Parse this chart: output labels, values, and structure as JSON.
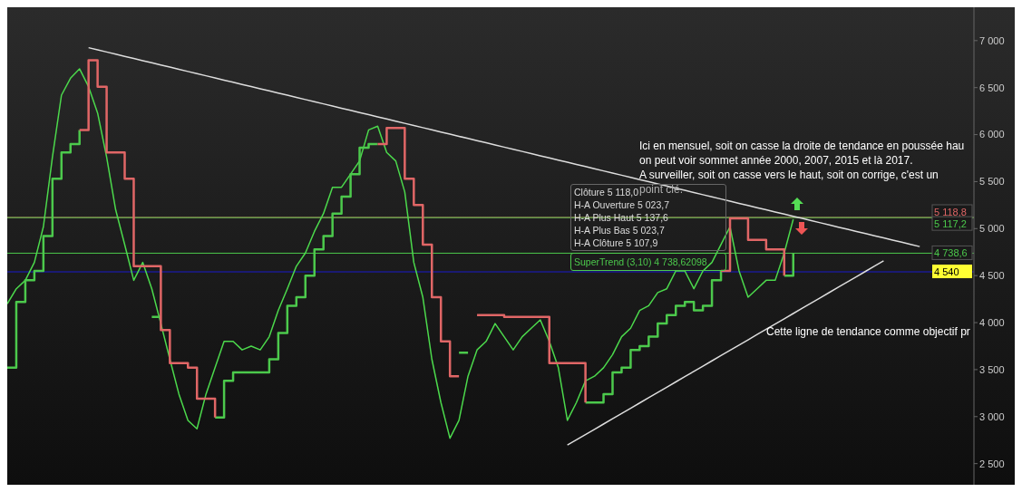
{
  "chart_data": {
    "type": "line",
    "categories": [
      null,
      null,
      null,
      null,
      null,
      null,
      null,
      null,
      null,
      null,
      null,
      null,
      null,
      null,
      null,
      null,
      null,
      null,
      null,
      null,
      null,
      null,
      null,
      null,
      null,
      null,
      null,
      null,
      null,
      null,
      null,
      null,
      null,
      null,
      null,
      null,
      null,
      null,
      null,
      null,
      null,
      null,
      null,
      null,
      null,
      null,
      null,
      null,
      null,
      null,
      null,
      null,
      null,
      null,
      null,
      null,
      null,
      null,
      null,
      null,
      null,
      null,
      null,
      null,
      null,
      null,
      null,
      null,
      null,
      null,
      null,
      null,
      null,
      null,
      null,
      null,
      null,
      null,
      null,
      null,
      null,
      null,
      null,
      null,
      null,
      null,
      null,
      null,
      null,
      null,
      null,
      null,
      null,
      null,
      null,
      null,
      null,
      null,
      null,
      null,
      null,
      null,
      null,
      null,
      null,
      null,
      null,
      null
    ],
    "series": [
      {
        "color": "#4cd94c",
        "values": [
          4200,
          4360,
          4450,
          4640,
          5020,
          5760,
          6420,
          6600,
          6700,
          6510,
          6230,
          5760,
          5200,
          4830,
          4450,
          4640,
          4360,
          3990,
          3610,
          3240,
          2960,
          2870,
          3240,
          3520,
          3800,
          3800,
          3710,
          3750,
          3710,
          3850,
          4130,
          4360,
          4600,
          4740,
          4970,
          5160,
          5440,
          5440,
          5580,
          5720,
          6050,
          6090,
          5810,
          5720,
          5390,
          4640,
          4270,
          3610,
          3150,
          2770,
          2960,
          3430,
          3710,
          3800,
          3990,
          3850,
          3710,
          3850,
          3940,
          4030,
          3800,
          3520,
          2960,
          3150,
          3380,
          3430,
          3520,
          3660,
          3850,
          3940,
          4130,
          4180,
          4320,
          4360,
          4550,
          4550,
          4360,
          4550,
          4640,
          4830,
          5020,
          4550,
          4270,
          4360,
          4450,
          4450,
          4740,
          5100,
          null,
          null,
          null,
          null,
          null,
          null,
          null,
          null,
          null,
          null,
          null,
          null,
          null,
          null,
          null,
          null,
          null,
          null,
          null,
          null
        ]
      },
      {
        "type": "step",
        "color": "#4cc94c",
        "values": [
          3520,
          4220,
          4450,
          4550,
          4920,
          5530,
          5810,
          5900,
          6050,
          null,
          null,
          null,
          null,
          null,
          null,
          null,
          4060,
          4060,
          null,
          null,
          null,
          null,
          null,
          2990,
          3380,
          3470,
          3470,
          3470,
          3470,
          3610,
          3890,
          4180,
          4270,
          4500,
          4780,
          4920,
          5160,
          5340,
          5580,
          5860,
          5900,
          5900,
          null,
          null,
          null,
          null,
          null,
          null,
          null,
          null,
          3680,
          3680,
          null,
          null,
          null,
          null,
          null,
          null,
          null,
          null,
          null,
          null,
          null,
          null,
          3150,
          3150,
          3240,
          3470,
          3520,
          3710,
          3750,
          3850,
          3990,
          4080,
          4180,
          4220,
          4130,
          4180,
          4450,
          4550,
          null,
          null,
          null,
          null,
          null,
          null,
          4500,
          4738.6,
          null,
          null,
          null,
          null,
          null,
          null,
          null,
          null,
          null,
          null,
          null,
          null,
          null,
          null,
          null,
          null,
          null,
          null,
          null,
          null
        ]
      },
      {
        "type": "step",
        "color": "#e06666",
        "values": [
          null,
          null,
          null,
          null,
          null,
          null,
          null,
          null,
          6050,
          6790,
          6510,
          5810,
          5810,
          5530,
          4600,
          4600,
          4600,
          3920,
          3570,
          3570,
          3520,
          3190,
          3190,
          2990,
          null,
          null,
          null,
          null,
          null,
          null,
          null,
          null,
          null,
          null,
          null,
          null,
          null,
          null,
          null,
          null,
          null,
          5900,
          6070,
          6070,
          5530,
          5250,
          4830,
          4270,
          3800,
          3430,
          3430,
          null,
          4080,
          4080,
          4080,
          4060,
          4060,
          4060,
          4060,
          4060,
          3570,
          3570,
          3570,
          3570,
          3150,
          null,
          null,
          null,
          null,
          null,
          null,
          null,
          null,
          null,
          null,
          null,
          null,
          null,
          null,
          4550,
          5110,
          5110,
          4880,
          4880,
          4780,
          4780,
          4500,
          null,
          null,
          null,
          null,
          null,
          null,
          null,
          null,
          null,
          null,
          null,
          null,
          null,
          null,
          null,
          null,
          null,
          null,
          null,
          null,
          null
        ]
      },
      {
        "color": "#dddddd",
        "values": [
          null,
          null,
          null,
          null,
          null,
          null,
          null,
          null,
          null,
          6925,
          6902,
          6879,
          6856,
          6833,
          6810,
          6787,
          6764,
          6741,
          6718,
          6695,
          6672,
          6649,
          6626,
          6603,
          6580,
          6557,
          6534,
          6511,
          6488,
          6465,
          6442,
          6419,
          6396,
          6373,
          6350,
          6327,
          6304,
          6281,
          6258,
          6235,
          6212,
          6189,
          6166,
          6143,
          6120,
          6097,
          6074,
          6051,
          6028,
          6005,
          5982,
          5959,
          5936,
          5913,
          5890,
          5867,
          5844,
          5821,
          5798,
          5775,
          5752,
          5729,
          5706,
          5683,
          5660,
          5637,
          5614,
          5591,
          5568,
          5545,
          5522,
          5499,
          5476,
          5453,
          5430,
          5407,
          5384,
          5361,
          5338,
          5315,
          5292,
          5269,
          5246,
          5223,
          5200,
          5177,
          5154,
          5131,
          5108,
          5085,
          5062,
          5039,
          5016,
          4993,
          4970,
          4947,
          4924,
          4901,
          4878,
          4855,
          4832,
          4809,
          null,
          null,
          null,
          null,
          null,
          null
        ]
      },
      {
        "color": "#dddddd",
        "values": [
          null,
          null,
          null,
          null,
          null,
          null,
          null,
          null,
          null,
          null,
          null,
          null,
          null,
          null,
          null,
          null,
          null,
          null,
          null,
          null,
          null,
          null,
          null,
          null,
          null,
          null,
          null,
          null,
          null,
          null,
          null,
          null,
          null,
          null,
          null,
          null,
          null,
          null,
          null,
          null,
          null,
          null,
          null,
          null,
          null,
          null,
          null,
          null,
          null,
          null,
          null,
          null,
          null,
          null,
          null,
          null,
          null,
          null,
          null,
          null,
          null,
          null,
          2697,
          2753,
          2809,
          2865,
          2921,
          2977,
          3033,
          3089,
          3145,
          3201,
          3257,
          3313,
          3369,
          3425,
          3481,
          3537,
          3593,
          3649,
          3705,
          3761,
          3817,
          3873,
          3929,
          3985,
          4041,
          4097,
          4153,
          4209,
          4265,
          4321,
          4377,
          4433,
          4489,
          4545,
          4601,
          4657,
          null,
          null,
          null,
          null,
          null,
          null,
          null,
          null,
          null,
          null
        ]
      }
    ],
    "ylim": [
      2275,
      7355
    ],
    "yticks": [
      {
        "value": 2500,
        "label": "2 500"
      },
      {
        "value": 3000,
        "label": "3 000"
      },
      {
        "value": 3500,
        "label": "3 500"
      },
      {
        "value": 4000,
        "label": "4 000"
      },
      {
        "value": 4500,
        "label": "4 500"
      },
      {
        "value": 5000,
        "label": "5 000"
      },
      {
        "value": 5500,
        "label": "5 500"
      },
      {
        "value": 6000,
        "label": "6 000"
      },
      {
        "value": 6500,
        "label": "6 500"
      },
      {
        "value": 7000,
        "label": "7 000"
      }
    ],
    "tick_labels": "y",
    "ref_lines": [
      {
        "axis": "y",
        "value": 5118.8,
        "label": "5 118,8",
        "color": "#e06666"
      },
      {
        "axis": "y",
        "value": 5117.2,
        "label": "5 117,2",
        "color": "#4cc94c"
      },
      {
        "axis": "y",
        "value": 4738.6,
        "label": "4 738,6",
        "color": "#4cc94c"
      },
      {
        "axis": "y",
        "value": 4540,
        "label": "4 540",
        "color": "#1a1acc"
      }
    ],
    "annotations": [
      "Ici en mensuel, soit on casse la droite de tendance en poussée hau",
      "on peut voir sommet année 2000, 2007, 2015 et là 2017.",
      "A surveiller, soit on casse vers le haut, soit on corrige, c'est un",
      "point clé.",
      "Cette ligne de tendance comme objectif pr",
      "Clôture 5 118,0",
      "H-A Ouverture 5 023,7",
      "H-A Plus Haut 5 137,6",
      "H-A Plus Bas 5 023,7",
      "H-A Clôture 5 107,9",
      "SuperTrend (3,10) 4 738,62098"
    ],
    "grid": false,
    "legend": false,
    "marker": "none"
  }
}
